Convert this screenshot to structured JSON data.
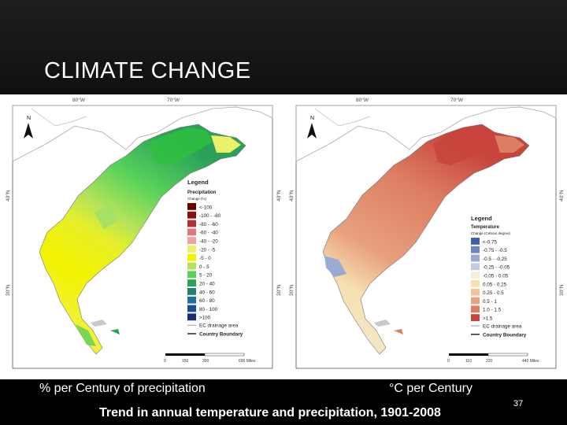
{
  "title": "CLIMATE CHANGE",
  "precip_map": {
    "axis_top": [
      "80°W",
      "70°W"
    ],
    "axis_left": [
      "40°N",
      "30°N"
    ],
    "axis_right": [
      "40°N",
      "30°N"
    ],
    "north": "N",
    "legend": {
      "title": "Legend",
      "subtitle": "Precipitation",
      "units": "Change (%)",
      "classes": [
        {
          "label": "<-100",
          "color": "#6a0000"
        },
        {
          "label": "-100 - -80",
          "color": "#8c1010"
        },
        {
          "label": "-80 - -60",
          "color": "#b53030"
        },
        {
          "label": "-60 - -40",
          "color": "#e07a7a"
        },
        {
          "label": "-40 - -20",
          "color": "#f2a2a2"
        },
        {
          "label": "-20 - -5",
          "color": "#eef06a"
        },
        {
          "label": "-5 - 0",
          "color": "#f3f300"
        },
        {
          "label": "0 - 5",
          "color": "#b4e35a"
        },
        {
          "label": "5 - 20",
          "color": "#5ad25a"
        },
        {
          "label": "20 - 40",
          "color": "#2aa05a"
        },
        {
          "label": "40 - 60",
          "color": "#208070"
        },
        {
          "label": "60 - 80",
          "color": "#1f6fa0"
        },
        {
          "label": "80 - 100",
          "color": "#1d4c90"
        },
        {
          "label": ">100",
          "color": "#162d78"
        }
      ],
      "line_items": [
        "EC drainage area",
        "Country Boundary"
      ]
    },
    "scale": [
      "0",
      "150",
      "300",
      "600 Miles"
    ]
  },
  "temp_map": {
    "axis_top": [
      "80°W",
      "70°W"
    ],
    "axis_left": [
      "40°N",
      "30°N"
    ],
    "axis_right": [
      "40°N",
      "30°N"
    ],
    "north": "N",
    "legend": {
      "title": "Legend",
      "subtitle": "Temperature",
      "units": "Change (Celsius degree)",
      "classes": [
        {
          "label": "<-0.75",
          "color": "#3f5faa"
        },
        {
          "label": "-0.75 - -0.5",
          "color": "#6f86c2"
        },
        {
          "label": "-0.5 - -0.25",
          "color": "#9aaad2"
        },
        {
          "label": "-0.25 - -0.05",
          "color": "#c6cce0"
        },
        {
          "label": "-0.05 - 0.05",
          "color": "#f1efd6"
        },
        {
          "label": "0.05 - 0.25",
          "color": "#f6dfb0"
        },
        {
          "label": "0.25 - 0.5",
          "color": "#f2c39a"
        },
        {
          "label": "0.5 - 1",
          "color": "#e8a07e"
        },
        {
          "label": "1.0 - 1.5",
          "color": "#dc7e62"
        },
        {
          "label": ">1.5",
          "color": "#c8443c"
        }
      ],
      "line_items": [
        "EC drainage area",
        "Country Boundary"
      ]
    },
    "scale": [
      "0",
      "110",
      "220",
      "440 Miles"
    ]
  },
  "captions": {
    "precip": "% per Century of precipitation",
    "temp": "°C per Century",
    "trend": "Trend in annual temperature and precipitation, 1901-2008"
  },
  "slide_number": "37"
}
